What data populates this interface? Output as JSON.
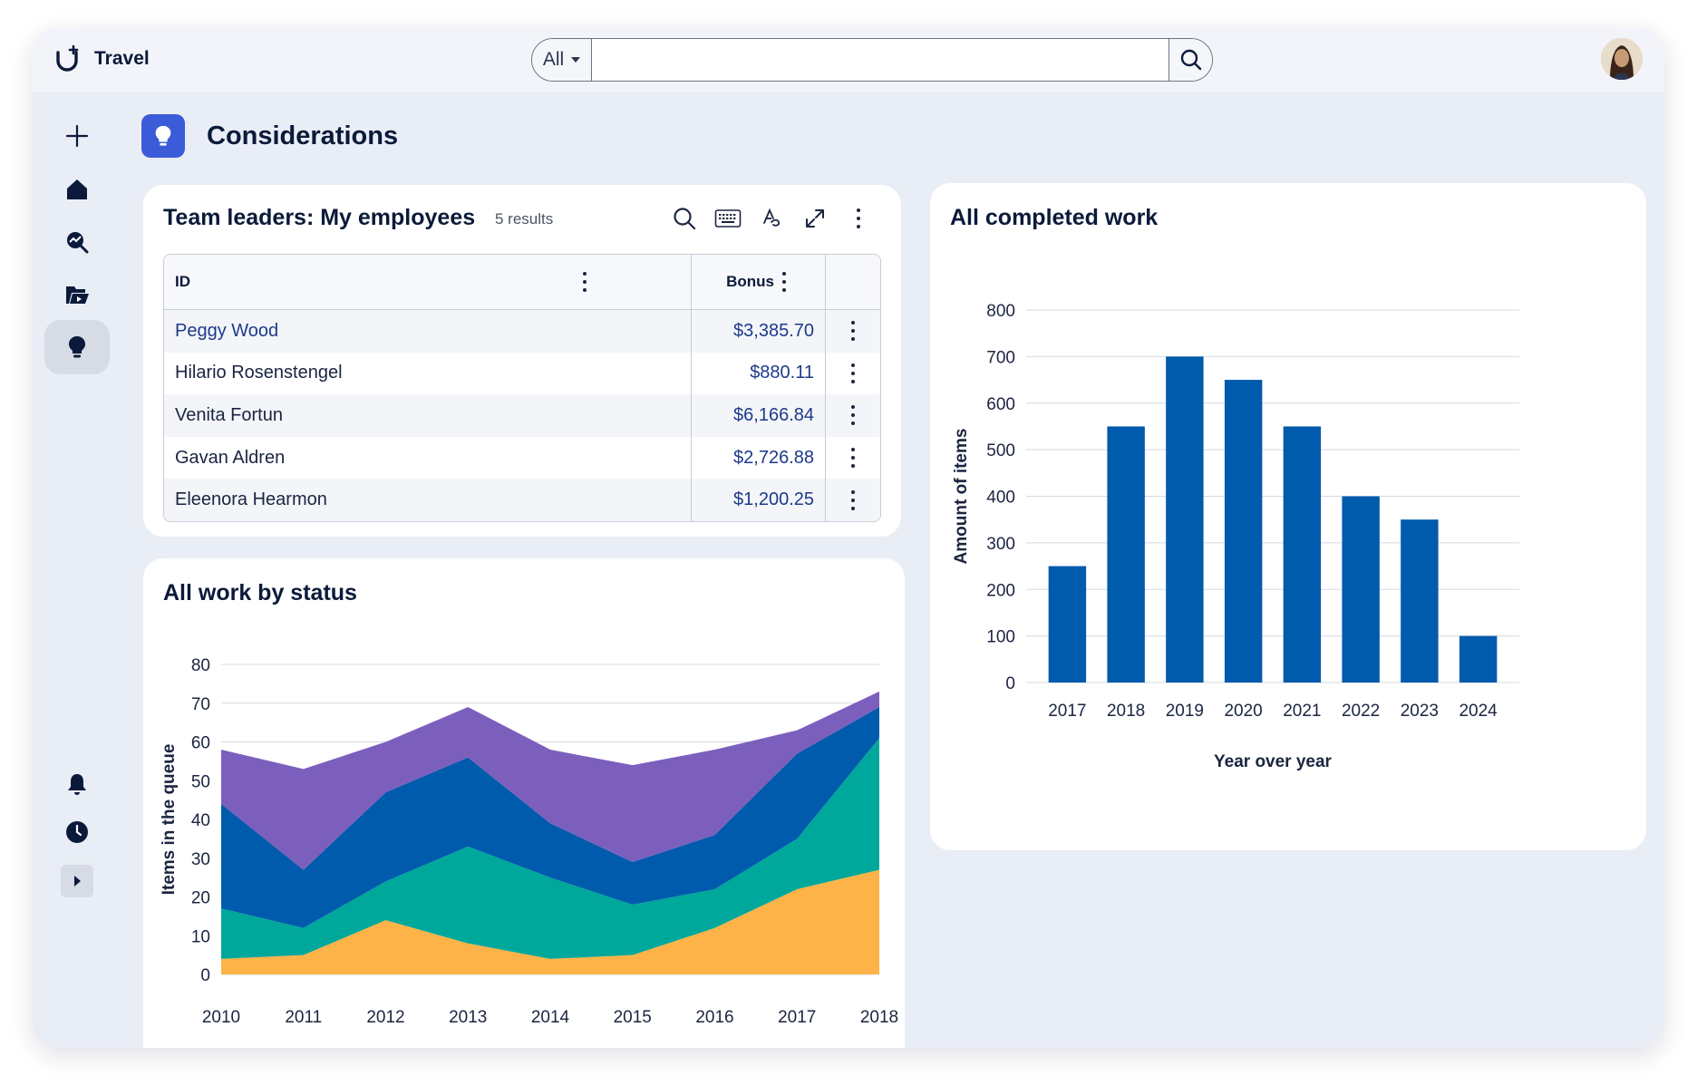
{
  "app": {
    "name": "Travel"
  },
  "search": {
    "scope": "All",
    "placeholder": ""
  },
  "nav": {
    "items": [
      {
        "icon": "plus-icon"
      },
      {
        "icon": "home-icon"
      },
      {
        "icon": "explore-icon"
      },
      {
        "icon": "folder-icon"
      },
      {
        "icon": "lightbulb-icon",
        "active": true
      },
      {
        "icon": "bell-icon"
      },
      {
        "icon": "clock-icon"
      },
      {
        "icon": "expand-icon"
      }
    ]
  },
  "page": {
    "title": "Considerations",
    "icon": "lightbulb-icon",
    "accent": "#3b5bd9"
  },
  "employees": {
    "title": "Team leaders: My employees",
    "results": "5 results",
    "columns": [
      "ID",
      "Bonus"
    ],
    "rows": [
      {
        "id": "Peggy Wood",
        "bonus": "$3,385.70"
      },
      {
        "id": "Hilario Rosenstengel",
        "bonus": "$880.11"
      },
      {
        "id": "Venita Fortun",
        "bonus": "$6,166.84"
      },
      {
        "id": "Gavan Aldren",
        "bonus": "$2,726.88"
      },
      {
        "id": "Eleenora Hearmon",
        "bonus": "$1,200.25"
      }
    ]
  },
  "chart_data": [
    {
      "type": "area",
      "title": "All work by status",
      "ylabel": "Items in the queue",
      "xlabel": "",
      "x": [
        "2010",
        "2011",
        "2012",
        "2013",
        "2014",
        "2015",
        "2016",
        "2017",
        "2018"
      ],
      "ylim": [
        0,
        80
      ],
      "yticks": [
        0,
        10,
        20,
        30,
        40,
        50,
        60,
        70,
        80
      ],
      "stacked": true,
      "grid": true,
      "series": [
        {
          "color": "#fdb347",
          "values": [
            4,
            5,
            14,
            8,
            4,
            5,
            12,
            22,
            27
          ]
        },
        {
          "color": "#00a79b",
          "values": [
            13,
            7,
            10,
            25,
            21,
            13,
            10,
            13,
            34
          ]
        },
        {
          "color": "#005bac",
          "values": [
            27,
            15,
            23,
            23,
            14,
            11,
            14,
            22,
            8
          ]
        },
        {
          "color": "#7c5fbd",
          "values": [
            14,
            26,
            13,
            13,
            19,
            25,
            22,
            6,
            4
          ]
        }
      ]
    },
    {
      "type": "bar",
      "title": "All completed work",
      "xlabel": "Year over year",
      "ylabel": "Amount of items",
      "categories": [
        "2017",
        "2018",
        "2019",
        "2020",
        "2021",
        "2022",
        "2023",
        "2024"
      ],
      "values": [
        250,
        550,
        700,
        650,
        550,
        400,
        350,
        100
      ],
      "ylim": [
        0,
        800
      ],
      "yticks": [
        0,
        100,
        200,
        300,
        400,
        500,
        600,
        700,
        800
      ],
      "color": "#005bac",
      "grid": true
    }
  ]
}
